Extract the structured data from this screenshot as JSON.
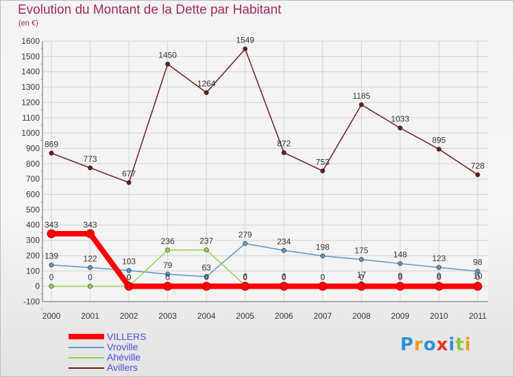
{
  "header": {
    "title": "Evolution du Montant de la Dette par Habitant",
    "subtitle": "(en €)"
  },
  "logo": {
    "text": "Proxiti",
    "colors": [
      "#2d8fd5",
      "#e8a020",
      "#2d8fd5",
      "#e83020",
      "#2d8fd5",
      "#8cc63f",
      "#e8a020"
    ]
  },
  "chart_data": {
    "type": "line",
    "title": "Evolution du Montant de la Dette par Habitant",
    "subtitle": "(en €)",
    "xlabel": "",
    "ylabel": "",
    "categories": [
      "2000",
      "2001",
      "2002",
      "2003",
      "2004",
      "2005",
      "2006",
      "2007",
      "2008",
      "2009",
      "2010",
      "2011"
    ],
    "ylim": [
      -100,
      1600
    ],
    "yticks": [
      "-100",
      "0",
      "100",
      "200",
      "300",
      "400",
      "500",
      "600",
      "700",
      "800",
      "900",
      "1000",
      "1100",
      "1200",
      "1300",
      "1400",
      "1500",
      "1600"
    ],
    "grid": true,
    "legend_position": "bottom-left",
    "series": [
      {
        "name": "Avillers",
        "color": "#6b1a1a",
        "values": [
          869,
          773,
          677,
          1450,
          1264,
          1549,
          872,
          753,
          1185,
          1033,
          895,
          728
        ],
        "labels": [
          "869",
          "773",
          "677",
          "1450",
          "1264",
          "1549",
          "872",
          "753",
          "1185",
          "1033",
          "895",
          "728"
        ]
      },
      {
        "name": "Vroville",
        "color": "#5a96c8",
        "values": [
          139,
          122,
          103,
          79,
          63,
          279,
          234,
          198,
          175,
          148,
          123,
          98
        ],
        "labels": [
          "139",
          "122",
          "103",
          "79",
          "63",
          "279",
          "234",
          "198",
          "175",
          "148",
          "123",
          "98"
        ]
      },
      {
        "name": "Ahéville",
        "color": "#92d050",
        "values": [
          0,
          0,
          0,
          236,
          237,
          6,
          6,
          0,
          17,
          9,
          9,
          10
        ],
        "labels": [
          "0",
          "0",
          "0",
          "236",
          "237",
          "6",
          "6",
          "0",
          "17",
          "9",
          "9",
          "10"
        ]
      },
      {
        "name": "VILLERS",
        "color": "#ff0000",
        "values": [
          343,
          343,
          0,
          0,
          0,
          0,
          0,
          0,
          0,
          0,
          0,
          0
        ],
        "labels": [
          "343",
          "343",
          "0",
          "0",
          "0",
          "0",
          "0",
          "0",
          "0",
          "0",
          "0",
          "0"
        ]
      }
    ],
    "legend": [
      "VILLERS",
      "Vroville",
      "Ahéville",
      "Avillers"
    ]
  }
}
